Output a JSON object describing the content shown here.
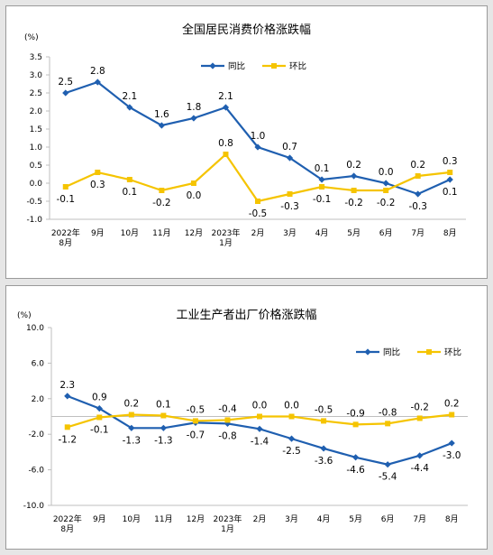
{
  "colors": {
    "yoy": "#1f5fb0",
    "mom": "#f5c400",
    "axis": "#bfbfbf",
    "text": "#000000"
  },
  "chart_data": [
    {
      "type": "line",
      "title": "全国居民消费价格涨跌幅",
      "unit_label": "(%)",
      "categories": [
        "2022年\n8月",
        "9月",
        "10月",
        "11月",
        "12月",
        "2023年\n1月",
        "2月",
        "3月",
        "4月",
        "5月",
        "6月",
        "7月",
        "8月"
      ],
      "ylim": [
        -1.0,
        3.5
      ],
      "yticks": [
        "-1.0",
        "-0.5",
        "0.0",
        "0.5",
        "1.0",
        "1.5",
        "2.0",
        "2.5",
        "3.0",
        "3.5"
      ],
      "ytick_values": [
        -1.0,
        -0.5,
        0.0,
        0.5,
        1.0,
        1.5,
        2.0,
        2.5,
        3.0,
        3.5
      ],
      "legend_position": "top-center",
      "series": [
        {
          "name": "同比",
          "values": [
            2.5,
            2.8,
            2.1,
            1.6,
            1.8,
            2.1,
            1.0,
            0.7,
            0.1,
            0.2,
            0.0,
            -0.3,
            0.1
          ],
          "labels": [
            "2.5",
            "2.8",
            "2.1",
            "1.6",
            "1.8",
            "2.1",
            "1.0",
            "0.7",
            "0.1",
            "0.2",
            "0.0",
            "-0.3",
            "0.1"
          ]
        },
        {
          "name": "环比",
          "values": [
            -0.1,
            0.3,
            0.1,
            -0.2,
            0.0,
            0.8,
            -0.5,
            -0.3,
            -0.1,
            -0.2,
            -0.2,
            0.2,
            0.3
          ],
          "labels": [
            "-0.1",
            "0.3",
            "0.1",
            "-0.2",
            "0.0",
            "0.8",
            "-0.5",
            "-0.3",
            "-0.1",
            "-0.2",
            "-0.2",
            "0.2",
            "0.3"
          ]
        }
      ]
    },
    {
      "type": "line",
      "title": "工业生产者出厂价格涨跌幅",
      "unit_label": "(%)",
      "categories": [
        "2022年\n8月",
        "9月",
        "10月",
        "11月",
        "12月",
        "2023年\n1月",
        "2月",
        "3月",
        "4月",
        "5月",
        "6月",
        "7月",
        "8月"
      ],
      "ylim": [
        -10.0,
        10.0
      ],
      "yticks": [
        "-10.0",
        "-6.0",
        "-2.0",
        "2.0",
        "6.0",
        "10.0"
      ],
      "ytick_values": [
        -10.0,
        -6.0,
        -2.0,
        2.0,
        6.0,
        10.0
      ],
      "legend_position": "top-right",
      "series": [
        {
          "name": "同比",
          "values": [
            2.3,
            0.9,
            -1.3,
            -1.3,
            -0.7,
            -0.8,
            -1.4,
            -2.5,
            -3.6,
            -4.6,
            -5.4,
            -4.4,
            -3.0
          ],
          "labels": [
            "2.3",
            "0.9",
            "-1.3",
            "-1.3",
            "-0.7",
            "-0.8",
            "-1.4",
            "-2.5",
            "-3.6",
            "-4.6",
            "-5.4",
            "-4.4",
            "-3.0"
          ]
        },
        {
          "name": "环比",
          "values": [
            -1.2,
            -0.1,
            0.2,
            0.1,
            -0.5,
            -0.4,
            0.0,
            0.0,
            -0.5,
            -0.9,
            -0.8,
            -0.2,
            0.2
          ],
          "labels": [
            "-1.2",
            "-0.1",
            "0.2",
            "0.1",
            "-0.5",
            "-0.4",
            "0.0",
            "0.0",
            "-0.5",
            "-0.9",
            "-0.8",
            "-0.2",
            "0.2"
          ]
        }
      ]
    }
  ]
}
